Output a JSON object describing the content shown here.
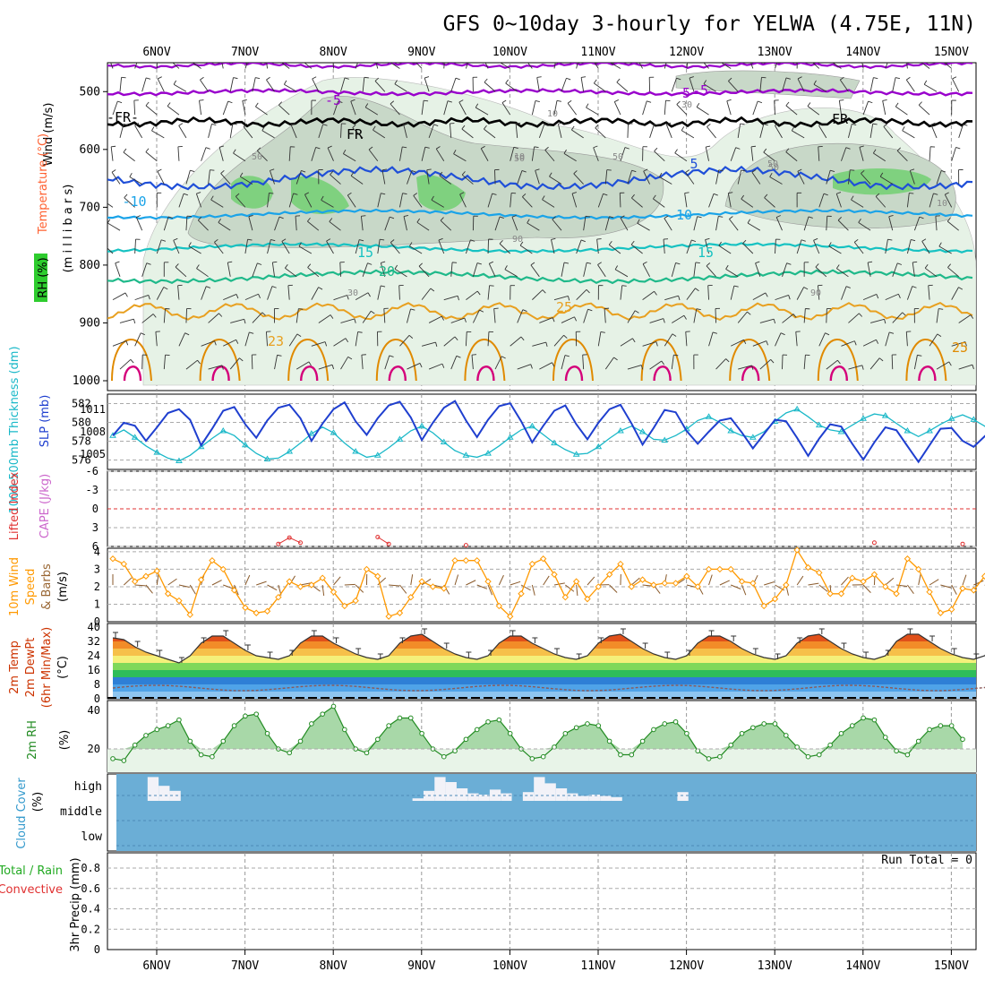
{
  "title": "GFS 0~10day 3-hourly for YELWA (4.75E, 11N)",
  "dates": [
    "6NOV",
    "7NOV",
    "8NOV",
    "9NOV",
    "10NOV",
    "11NOV",
    "12NOV",
    "13NOV",
    "14NOV",
    "15NOV"
  ],
  "colors": {
    "purple": "#9900cc",
    "frz": "#000000",
    "blue5": "#1f4fd8",
    "blue10": "#1aa3e8",
    "teal15": "#16c2c2",
    "green20": "#1fb98a",
    "orange25": "#e8a020",
    "slp": "#1f3fcf",
    "thick": "#1ab8c8",
    "lifted": "#e03030",
    "wind": "#ff9900",
    "rh": "#228b22",
    "rhfill": "#a8d8a8",
    "cloud": "#6baed6"
  },
  "panels": {
    "upper": {
      "ylabel_wind": "Wind (m/s)",
      "ylabel_temp": "Temperature (°C)",
      "ylabel_rh": "RH (%)",
      "ylabel_p": "(m i l l i b a r s)",
      "ticks": [
        "500",
        "600",
        "700",
        "800",
        "900",
        "1000"
      ],
      "contour_labels": [
        "-5",
        "-5",
        "-FR-",
        "FR",
        "FR",
        "-5",
        "5",
        "-10",
        "10",
        "15",
        "15",
        "20",
        "25",
        "25",
        "23",
        "10",
        "30",
        "50",
        "50",
        "50",
        "50",
        "90",
        "30",
        "90",
        "50",
        "10",
        "10"
      ]
    },
    "slp": {
      "ylabel_thick": "1000-500mb Thickness (dm)",
      "ylabel_slp": "SLP (mb)",
      "ticks_left": [
        "582",
        "580",
        "578",
        "576"
      ],
      "ticks_right": [
        "1011",
        "1008",
        "1005"
      ]
    },
    "cape": {
      "ylabel_li": "Lifted Index",
      "ylabel_cape": "CAPE (J/kg)",
      "ticks": [
        "-6",
        "-3",
        "0",
        "3",
        "6"
      ]
    },
    "wind10": {
      "ylabel_a": "10m Wind",
      "ylabel_b": "Speed",
      "ylabel_c": "& Barbs",
      "ylabel_d": "(m/s)",
      "ticks": [
        "4",
        "3",
        "2",
        "1",
        "0"
      ]
    },
    "temp2m": {
      "ylabel_a": "2m Temp",
      "ylabel_b": "2m DewPt",
      "ylabel_c": "(6hr Min/Max)",
      "ylabel_d": "(°C)",
      "ticks": [
        "40",
        "32",
        "24",
        "16",
        "8",
        "0"
      ]
    },
    "rh2m": {
      "ylabel_a": "2m RH",
      "ylabel_b": "(%)",
      "ticks": [
        "40",
        "20"
      ]
    },
    "cloud": {
      "ylabel_a": "Cloud Cover",
      "ylabel_b": "(%)",
      "ticks": [
        "high",
        "middle",
        "low"
      ]
    },
    "precip": {
      "ylabel_a": "Total / Rain",
      "ylabel_b": "Convective",
      "ylabel_c": "3hr Precip (mm)",
      "ticks": [
        "0.8",
        "0.6",
        "0.4",
        "0.2",
        "0"
      ],
      "run_total": "Run Total = 0"
    }
  },
  "chart_data": [
    {
      "type": "line",
      "title": "1000-500mb Thickness (dm)",
      "ylim": [
        575,
        583
      ],
      "values": [
        578.6,
        579.2,
        578.4,
        577.5,
        576.8,
        576.2,
        575.9,
        576.5,
        577.4,
        578.3,
        579.1,
        578.6,
        577.6,
        576.7,
        576.1,
        576.2,
        576.9,
        577.8,
        578.8,
        579.5,
        578.9,
        577.8,
        576.9,
        576.3,
        576.5,
        577.3,
        578.2,
        579.1,
        579.6,
        578.9,
        577.9,
        577.0,
        576.5,
        576.3,
        576.7,
        577.5,
        578.4,
        579.2,
        579.6,
        578.7,
        577.8,
        577.1,
        576.6,
        576.7,
        577.4,
        578.3,
        579.1,
        579.6,
        579.0,
        578.2,
        578.1,
        578.6,
        579.3,
        580.2,
        580.6,
        580.0,
        579.1,
        578.6,
        578.4,
        579.0,
        580.1,
        581.0,
        581.4,
        580.6,
        579.7,
        579.2,
        579.0,
        579.7,
        580.4,
        580.9,
        580.7,
        579.9,
        579.1,
        578.5,
        579.1,
        579.8,
        580.4,
        580.8,
        580.3,
        579.6,
        578.6
      ]
    },
    {
      "type": "line",
      "title": "SLP (mb)",
      "ylim": [
        1003,
        1013
      ],
      "values": [
        1007.5,
        1009.2,
        1008.8,
        1006.8,
        1008.6,
        1010.5,
        1011.0,
        1009.6,
        1006.2,
        1008.4,
        1010.8,
        1011.3,
        1009.0,
        1007.2,
        1009.5,
        1011.2,
        1011.6,
        1009.8,
        1006.8,
        1009.1,
        1011.0,
        1011.9,
        1009.4,
        1007.6,
        1009.8,
        1011.5,
        1012.0,
        1009.9,
        1006.9,
        1009.2,
        1011.2,
        1012.1,
        1009.5,
        1007.3,
        1009.6,
        1011.4,
        1011.8,
        1009.4,
        1006.6,
        1008.8,
        1010.8,
        1011.5,
        1009.0,
        1007.0,
        1009.2,
        1011.0,
        1011.6,
        1009.1,
        1006.3,
        1008.5,
        1010.9,
        1010.6,
        1008.1,
        1006.4,
        1008.0,
        1009.5,
        1009.8,
        1007.9,
        1005.8,
        1007.7,
        1009.6,
        1009.4,
        1007.2,
        1004.8,
        1007.1,
        1009.0,
        1008.7,
        1006.4,
        1004.3,
        1006.6,
        1008.6,
        1008.2,
        1006.1,
        1004.0,
        1006.2,
        1008.4,
        1008.5,
        1006.8,
        1006.0,
        1007.4,
        1008.8
      ]
    },
    {
      "type": "line",
      "title": "Lifted Index",
      "ylim": [
        -6,
        6
      ],
      "values": [
        null,
        null,
        null,
        null,
        null,
        null,
        null,
        null,
        null,
        null,
        null,
        null,
        null,
        null,
        null,
        5.6,
        4.6,
        5.4,
        null,
        null,
        null,
        null,
        null,
        null,
        4.5,
        5.6,
        null,
        null,
        null,
        null,
        null,
        null,
        5.8,
        null,
        null,
        null,
        null,
        null,
        null,
        null,
        null,
        null,
        null,
        null,
        null,
        null,
        null,
        null,
        null,
        null,
        null,
        null,
        null,
        null,
        null,
        null,
        null,
        null,
        null,
        null,
        null,
        null,
        null,
        null,
        null,
        null,
        null,
        null,
        null,
        5.4,
        null,
        null,
        null,
        null,
        null,
        null,
        null,
        5.6,
        null,
        null,
        null
      ]
    },
    {
      "type": "line",
      "title": "10m Wind Speed (m/s)",
      "ylim": [
        0,
        4.2
      ],
      "values": [
        3.6,
        3.3,
        2.3,
        2.6,
        2.9,
        1.6,
        1.2,
        0.4,
        2.4,
        3.5,
        3.0,
        1.8,
        0.8,
        0.5,
        0.6,
        1.4,
        2.3,
        2.0,
        2.1,
        2.5,
        1.7,
        0.9,
        1.2,
        3.0,
        2.6,
        0.3,
        0.5,
        1.4,
        2.3,
        2.0,
        1.9,
        3.5,
        3.5,
        3.5,
        2.3,
        0.9,
        0.3,
        1.6,
        3.3,
        3.6,
        2.7,
        1.4,
        2.3,
        1.3,
        2.0,
        2.7,
        3.3,
        2.0,
        2.4,
        2.1,
        2.2,
        2.2,
        2.6,
        2.0,
        3.0,
        3.0,
        3.0,
        2.3,
        2.2,
        0.9,
        1.3,
        2.1,
        4.1,
        3.1,
        2.8,
        1.6,
        1.6,
        2.5,
        2.3,
        2.7,
        2.0,
        1.6,
        3.6,
        3.0,
        1.7,
        0.5,
        0.7,
        1.9,
        1.8,
        2.6,
        2.0,
        2.4,
        2.4,
        2.7
      ]
    },
    {
      "type": "area",
      "title": "2m Temp (°C)",
      "ylim": [
        0,
        42
      ],
      "values": [
        34,
        33,
        29,
        26,
        24,
        22,
        20,
        24,
        31,
        35,
        35,
        31,
        27,
        24,
        23,
        22,
        24,
        31,
        35,
        35,
        31,
        28,
        25,
        23,
        22,
        24,
        31,
        35,
        36,
        32,
        28,
        25,
        23,
        22,
        24,
        31,
        35,
        35,
        31,
        28,
        25,
        23,
        22,
        24,
        31,
        35,
        36,
        32,
        28,
        25,
        23,
        22,
        24,
        31,
        35,
        35,
        32,
        28,
        25,
        23,
        22,
        24,
        31,
        35,
        36,
        32,
        28,
        25,
        23,
        22,
        24,
        32,
        36,
        36,
        32,
        28,
        25,
        23,
        22,
        24,
        32,
        36,
        36
      ]
    },
    {
      "type": "area",
      "title": "2m RH (%)",
      "ylim": [
        8,
        45
      ],
      "values": [
        15,
        14,
        22,
        27,
        30,
        32,
        35,
        24,
        17,
        16,
        24,
        32,
        37,
        38,
        28,
        20,
        18,
        24,
        33,
        38,
        42,
        30,
        20,
        18,
        25,
        32,
        36,
        36,
        28,
        20,
        16,
        19,
        25,
        30,
        34,
        35,
        28,
        20,
        15,
        16,
        21,
        28,
        31,
        33,
        32,
        24,
        17,
        17,
        24,
        30,
        33,
        34,
        28,
        19,
        15,
        16,
        22,
        28,
        31,
        33,
        33,
        27,
        21,
        16,
        17,
        22,
        28,
        32,
        36,
        35,
        26,
        19,
        17,
        24,
        30,
        32,
        32,
        25
      ]
    },
    {
      "type": "bar",
      "title": "Cloud Cover (%) high",
      "values": [
        0,
        0,
        0,
        95,
        60,
        40,
        0,
        0,
        0,
        0,
        0,
        0,
        0,
        0,
        0,
        0,
        0,
        0,
        0,
        0,
        0,
        0,
        0,
        0,
        0,
        0,
        0,
        10,
        40,
        95,
        75,
        50,
        30,
        25,
        45,
        30,
        0,
        35,
        95,
        70,
        50,
        30,
        20,
        25,
        20,
        15,
        0,
        0,
        0,
        0,
        0,
        35,
        0,
        0,
        0,
        0,
        0,
        0,
        0,
        0,
        0,
        0,
        0,
        0,
        0,
        0,
        0,
        0,
        0,
        0,
        0,
        0,
        0,
        0,
        0,
        0,
        0,
        0,
        0,
        0,
        0
      ]
    },
    {
      "type": "line",
      "title": "3hr Precip (mm)",
      "ylim": [
        0,
        0.95
      ],
      "values": [
        0,
        0,
        0,
        0,
        0,
        0,
        0,
        0,
        0,
        0
      ]
    }
  ]
}
